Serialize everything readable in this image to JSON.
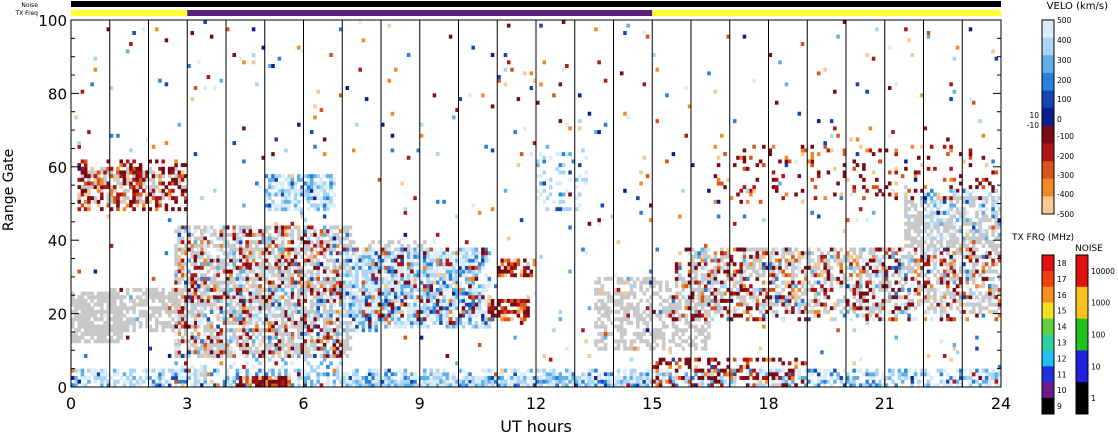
{
  "header": {
    "noise_label": "Noise",
    "txfreq_label": "TX Freq"
  },
  "chart_data": {
    "type": "heatmap",
    "xlabel": "UT hours",
    "ylabel": "Range Gate",
    "xlim": [
      0,
      24
    ],
    "ylim": [
      0,
      100
    ],
    "xticks": [
      "0",
      "3",
      "6",
      "9",
      "12",
      "15",
      "18",
      "21",
      "24"
    ],
    "yticks": [
      "0",
      "20",
      "40",
      "60",
      "80",
      "100"
    ],
    "grid": false,
    "noise_bar_color": "#000000",
    "txfreq_segments": [
      {
        "start": 0,
        "end": 3,
        "color": "#ffff33"
      },
      {
        "start": 3,
        "end": 15,
        "color": "#5c1e7a"
      },
      {
        "start": 15,
        "end": 24,
        "color": "#ffff33"
      }
    ],
    "ground_scatter_color": "#c8c8c8",
    "scan_lines_hours": [
      1,
      2,
      3,
      4,
      5,
      6,
      7,
      8,
      9,
      10,
      11,
      12,
      13,
      14,
      15,
      16,
      17,
      18,
      19,
      20,
      21,
      22,
      23
    ],
    "velocity_scale": {
      "title": "VELO (km/s)",
      "labels": [
        "500",
        "400",
        "300",
        "200",
        "100",
        "10",
        "0",
        "-10",
        "-100",
        "-200",
        "-300",
        "-400",
        "-500"
      ],
      "colors": [
        "#d8ecfa",
        "#a9d4f5",
        "#5fb0e8",
        "#2a7fd6",
        "#1446b0",
        "#0a1e8c",
        "#7a0a14",
        "#b01414",
        "#d8521a",
        "#f08a28",
        "#f8c890"
      ]
    },
    "txfreq_scale": {
      "title": "TX FRQ (MHz)",
      "labels": [
        "18",
        "17",
        "16",
        "15",
        "14",
        "13",
        "12",
        "11",
        "10",
        "9"
      ],
      "colors": [
        "#e01010",
        "#f04010",
        "#f89020",
        "#f0e020",
        "#60d040",
        "#30d0a0",
        "#20c0f0",
        "#2030e0",
        "#701890",
        "#000000"
      ]
    },
    "noise_scale": {
      "title": "NOISE",
      "labels": [
        "10000",
        "1000",
        "100",
        "10",
        "1"
      ],
      "colors": [
        "#e01010",
        "#f8c020",
        "#20c020",
        "#2020e0",
        "#000000"
      ]
    },
    "regions": [
      {
        "kind": "ground",
        "t0": 0.0,
        "t1": 1.3,
        "g0": 12,
        "g1": 26,
        "density": 0.8
      },
      {
        "kind": "ground",
        "t0": 1.0,
        "t1": 2.7,
        "g0": 15,
        "g1": 27,
        "density": 0.6
      },
      {
        "kind": "ground",
        "t0": 2.7,
        "t1": 7.2,
        "g0": 8,
        "g1": 44,
        "density": 0.55
      },
      {
        "kind": "ground",
        "t0": 7.2,
        "t1": 9.5,
        "g0": 20,
        "g1": 40,
        "density": 0.3
      },
      {
        "kind": "ground",
        "t0": 13.5,
        "t1": 16.5,
        "g0": 10,
        "g1": 30,
        "density": 0.5
      },
      {
        "kind": "ground",
        "t0": 16.0,
        "t1": 24.0,
        "g0": 20,
        "g1": 38,
        "density": 0.4
      },
      {
        "kind": "ground",
        "t0": 21.5,
        "t1": 24.0,
        "g0": 38,
        "g1": 52,
        "density": 0.55
      },
      {
        "kind": "ground",
        "t0": 0.2,
        "t1": 3.0,
        "g0": 50,
        "g1": 60,
        "density": 0.35
      },
      {
        "kind": "neg",
        "t0": 0.2,
        "t1": 3.0,
        "g0": 48,
        "g1": 62,
        "density": 0.35
      },
      {
        "kind": "neg",
        "t0": 2.7,
        "t1": 7.0,
        "g0": 8,
        "g1": 44,
        "density": 0.25
      },
      {
        "kind": "pos",
        "t0": 2.7,
        "t1": 7.0,
        "g0": 5,
        "g1": 44,
        "density": 0.18
      },
      {
        "kind": "pos",
        "t0": 5.0,
        "t1": 6.8,
        "g0": 48,
        "g1": 58,
        "density": 0.7
      },
      {
        "kind": "pos",
        "t0": 7.0,
        "t1": 8.0,
        "g0": 15,
        "g1": 38,
        "density": 0.6
      },
      {
        "kind": "pos",
        "t0": 7.5,
        "t1": 10.8,
        "g0": 16,
        "g1": 38,
        "density": 0.75
      },
      {
        "kind": "neg",
        "t0": 7.5,
        "t1": 10.8,
        "g0": 16,
        "g1": 38,
        "density": 0.12
      },
      {
        "kind": "neg",
        "t0": 10.8,
        "t1": 11.8,
        "g0": 18,
        "g1": 24,
        "density": 0.7
      },
      {
        "kind": "neg",
        "t0": 11.0,
        "t1": 12.0,
        "g0": 30,
        "g1": 35,
        "density": 0.5
      },
      {
        "kind": "pos",
        "t0": 12.0,
        "t1": 13.3,
        "g0": 48,
        "g1": 64,
        "density": 0.25
      },
      {
        "kind": "neg",
        "t0": 15.5,
        "t1": 24.0,
        "g0": 18,
        "g1": 38,
        "density": 0.22
      },
      {
        "kind": "pos",
        "t0": 15.5,
        "t1": 24.0,
        "g0": 18,
        "g1": 38,
        "density": 0.1
      },
      {
        "kind": "neg",
        "t0": 16.5,
        "t1": 24.0,
        "g0": 50,
        "g1": 66,
        "density": 0.12
      },
      {
        "kind": "pos",
        "t0": 22.0,
        "t1": 24.0,
        "g0": 40,
        "g1": 54,
        "density": 0.3
      },
      {
        "kind": "pos",
        "t0": 0.0,
        "t1": 24.0,
        "g0": 0,
        "g1": 5,
        "density": 0.55
      },
      {
        "kind": "neg",
        "t0": 15.0,
        "t1": 19.0,
        "g0": 0,
        "g1": 8,
        "density": 0.3
      },
      {
        "kind": "pos",
        "t0": 7.0,
        "t1": 15.0,
        "g0": 0,
        "g1": 3,
        "density": 0.9
      },
      {
        "kind": "neg",
        "t0": 4.3,
        "t1": 5.6,
        "g0": 0,
        "g1": 3,
        "density": 0.9
      },
      {
        "kind": "mixed",
        "t0": 0.0,
        "t1": 24.0,
        "g0": 0,
        "g1": 100,
        "density": 0.018
      }
    ]
  }
}
